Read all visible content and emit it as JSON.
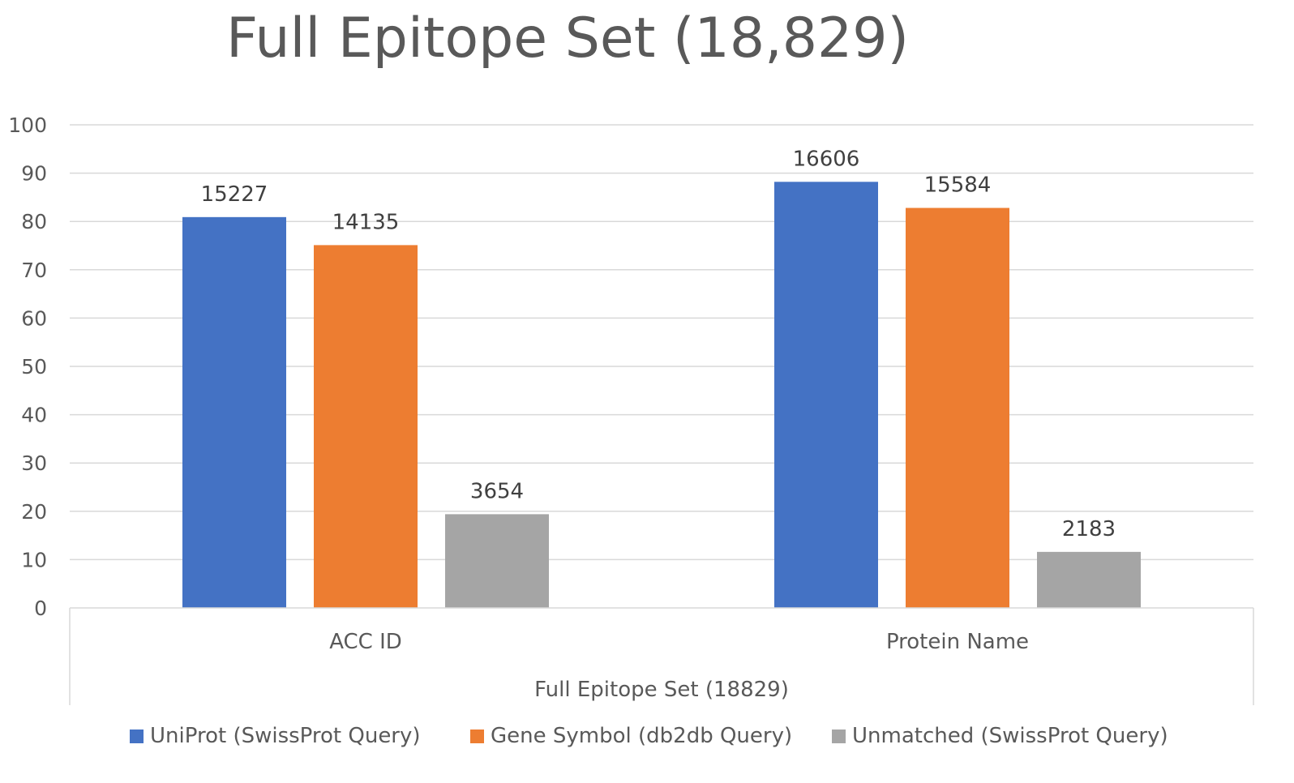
{
  "chart_data": {
    "type": "bar",
    "title": "Full Epitope Set (18,829)",
    "xlabel": "Full Epitope Set (18829)",
    "ylabel": "",
    "ylim": [
      0,
      100
    ],
    "yticks": [
      0,
      10,
      20,
      30,
      40,
      50,
      60,
      70,
      80,
      90,
      100
    ],
    "categories": [
      "ACC ID",
      "Protein Name"
    ],
    "series": [
      {
        "name": "UniProt (SwissProt Query)",
        "color": "#4472C4",
        "values": [
          80.9,
          88.2
        ],
        "labels": [
          "15227",
          "16606"
        ]
      },
      {
        "name": "Gene Symbol (db2db Query)",
        "color": "#ED7D31",
        "values": [
          75.1,
          82.8
        ],
        "labels": [
          "14135",
          "15584"
        ]
      },
      {
        "name": "Unmatched (SwissProt Query)",
        "color": "#A5A5A5",
        "values": [
          19.4,
          11.6
        ],
        "labels": [
          "3654",
          "2183"
        ]
      }
    ],
    "grid": true,
    "legend_position": "bottom"
  }
}
